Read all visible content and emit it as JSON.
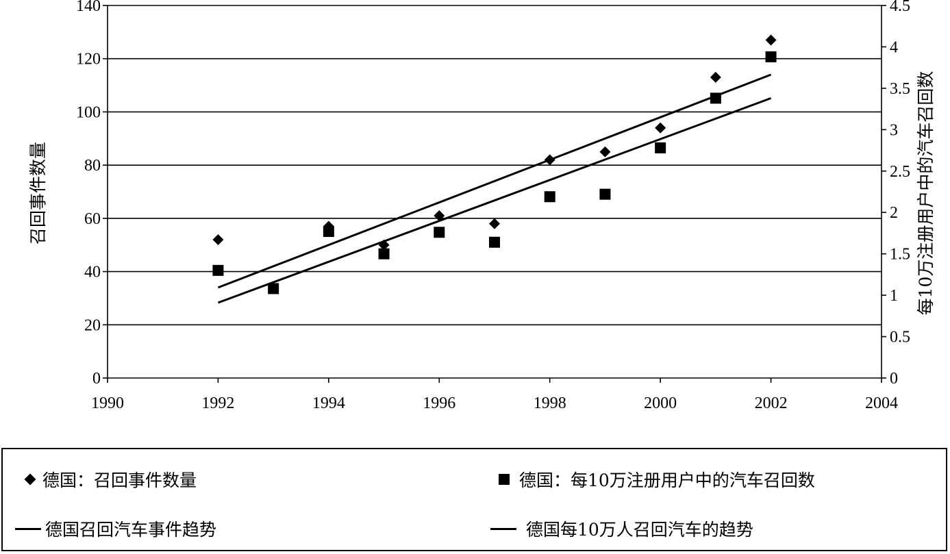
{
  "chart_data": {
    "type": "scatter",
    "x": [
      1992,
      1993,
      1994,
      1995,
      1996,
      1997,
      1998,
      1999,
      2000,
      2001,
      2002
    ],
    "series": [
      {
        "name": "德国：召回事件数量",
        "axis": "left",
        "marker": "diamond",
        "values": [
          52,
          null,
          57,
          50,
          61,
          58,
          82,
          85,
          94,
          113,
          127
        ]
      },
      {
        "name": "德国：每10万注册用户中的汽车召回数",
        "axis": "right",
        "marker": "square",
        "values": [
          1.3,
          1.08,
          1.77,
          1.5,
          1.76,
          1.64,
          2.19,
          2.22,
          2.78,
          3.38,
          3.88
        ]
      },
      {
        "name": "德国召回汽车事件趋势",
        "type": "line",
        "axis": "left",
        "x": [
          1992,
          2002
        ],
        "values": [
          34,
          114
        ]
      },
      {
        "name": "德国每10万人召回汽车的趋势",
        "type": "line",
        "axis": "right",
        "x": [
          1992,
          2002
        ],
        "values": [
          0.91,
          3.38
        ]
      }
    ],
    "xlim": [
      1990,
      2004
    ],
    "xticks": [
      "1990",
      "1992",
      "1994",
      "1996",
      "1998",
      "2000",
      "2002",
      "2004"
    ],
    "ylim": [
      0,
      140
    ],
    "yticks": [
      "0",
      "20",
      "40",
      "60",
      "80",
      "100",
      "120",
      "140"
    ],
    "y2lim": [
      0,
      4.5
    ],
    "y2ticks": [
      "0",
      "0.5",
      "1",
      "1.5",
      "2",
      "2.5",
      "3",
      "3.5",
      "4",
      "4.5"
    ],
    "ylabel": "召回事件数量",
    "y2label": "每10万注册用户中的汽车召回数",
    "grid": "horizontal",
    "legend_position": "bottom"
  }
}
